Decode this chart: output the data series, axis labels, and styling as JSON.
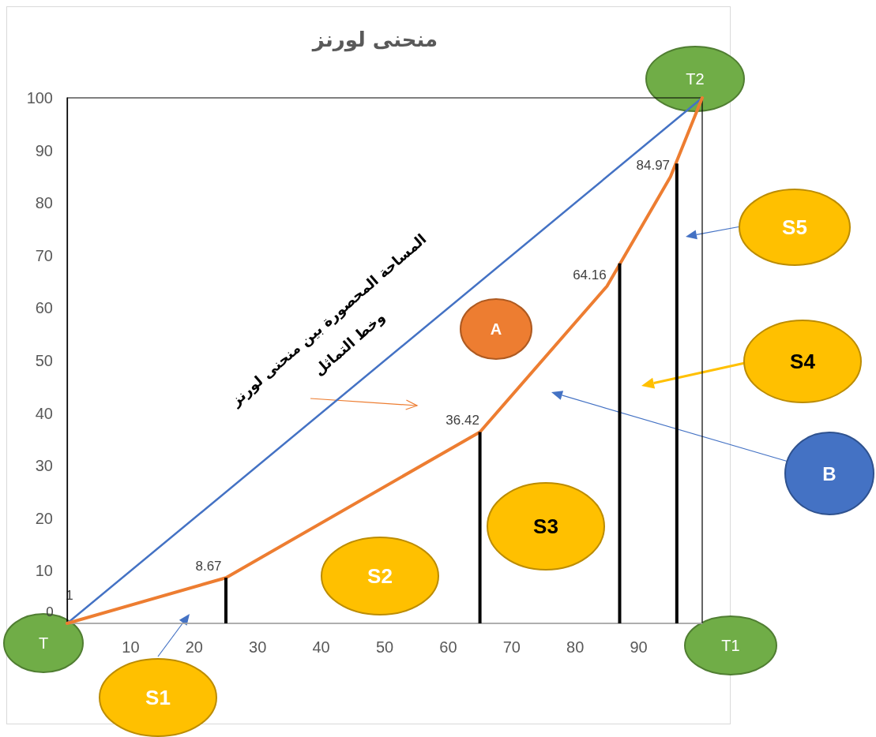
{
  "chart_data": {
    "type": "line",
    "title": "منحنى لورنز",
    "xlim": [
      0,
      100
    ],
    "xticks": [
      10,
      20,
      30,
      40,
      50,
      60,
      70,
      80,
      90
    ],
    "ylim": [
      0,
      100
    ],
    "yticks": [
      10,
      20,
      30,
      40,
      50,
      60,
      70,
      80,
      90,
      100
    ],
    "grid": false,
    "marker": "none",
    "line_style": "solid",
    "series": [
      {
        "color": "#4472c4",
        "x": [
          0,
          100
        ],
        "values": [
          0,
          100
        ]
      },
      {
        "color": "#ed7d31",
        "x": [
          0,
          25,
          65,
          85,
          95,
          100
        ],
        "values": [
          0,
          8.67,
          36.42,
          64.16,
          84.97,
          100
        ],
        "value_labels": [
          "0",
          "8.67",
          "36.42",
          "64.16",
          "84.97",
          null
        ]
      },
      {
        "type": "bar",
        "color": "#000000",
        "x": [
          25,
          65,
          87,
          96
        ],
        "values": [
          8.7,
          36.4,
          68.5,
          87.5
        ]
      }
    ],
    "annotations": [
      "T",
      "T1",
      "T2",
      "S1",
      "S2",
      "S3",
      "S4",
      "S5",
      "A",
      "B",
      "المساحة المحصورة بين منحنى لورنز\nوخط التماثل",
      "1"
    ]
  }
}
